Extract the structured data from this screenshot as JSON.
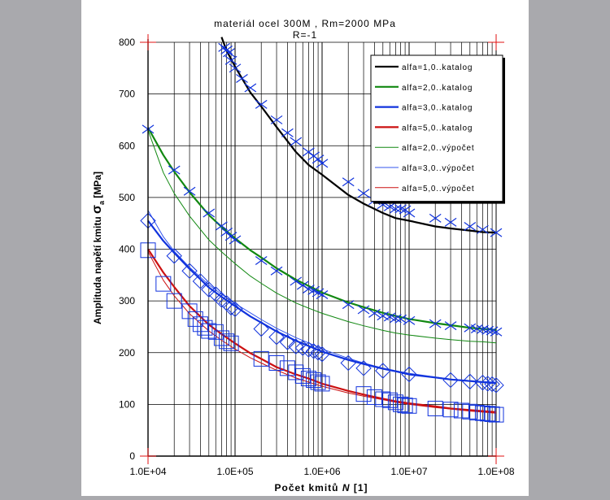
{
  "chart_data": {
    "type": "line",
    "title": "materiál ocel 300M , Rm=2000 MPa",
    "subtitle": "R=-1",
    "xlabel_prefix": "Počet kmitů ",
    "xlabel_var": "N",
    "xlabel_suffix": "  [1]",
    "ylabel_prefix": "Amplituda napětí kmitu ",
    "ylabel_sym": "σ",
    "ylabel_sub": "a",
    "ylabel_suffix": " [MPa]",
    "x_scale": "log",
    "xlim": [
      10000,
      100000000
    ],
    "ylim": [
      0,
      800
    ],
    "x_ticks": [
      10000,
      100000,
      1000000,
      10000000,
      100000000
    ],
    "x_tick_labels": [
      "1.0E+04",
      "1.0E+05",
      "1.0E+06",
      "1.0E+07",
      "1.0E+08"
    ],
    "y_ticks": [
      0,
      100,
      200,
      300,
      400,
      500,
      600,
      700,
      800
    ],
    "y_tick_labels": [
      "0",
      "100",
      "200",
      "300",
      "400",
      "500",
      "600",
      "700",
      "800"
    ],
    "grid": true,
    "legend_position": "top-right",
    "series": [
      {
        "name": "alfa=1,0..katalog",
        "color": "#000000",
        "style": "solid-thick",
        "x": [
          70000,
          80000,
          100000,
          150000,
          200000,
          300000,
          500000,
          700000,
          1000000,
          2000000,
          3000000,
          5000000,
          7000000,
          10000000,
          20000000,
          30000000,
          50000000,
          70000000,
          100000000
        ],
        "y": [
          810,
          784,
          753,
          703,
          676,
          636,
          588,
          563,
          544,
          505,
          488,
          470,
          460,
          455,
          444,
          440,
          436,
          433,
          432
        ]
      },
      {
        "name": "alfa=2,0..katalog",
        "color": "#118811",
        "style": "solid-thick",
        "x": [
          10000,
          15000,
          20000,
          30000,
          50000,
          70000,
          100000,
          150000,
          200000,
          300000,
          500000,
          700000,
          1000000,
          2000000,
          3000000,
          5000000,
          7000000,
          10000000,
          20000000,
          30000000,
          50000000,
          70000000,
          100000000
        ],
        "y": [
          635,
          582,
          550,
          510,
          466,
          443,
          421,
          398,
          384,
          363,
          341,
          329,
          316,
          297,
          288,
          277,
          271,
          265,
          257,
          253,
          248,
          246,
          244
        ]
      },
      {
        "name": "alfa=3,0..katalog",
        "color": "#1133dd",
        "style": "solid-thick",
        "x": [
          10000,
          15000,
          20000,
          30000,
          50000,
          70000,
          100000,
          150000,
          200000,
          300000,
          500000,
          700000,
          1000000,
          2000000,
          3000000,
          5000000,
          7000000,
          10000000,
          20000000,
          30000000,
          50000000,
          70000000,
          100000000
        ],
        "y": [
          455,
          416,
          393,
          362,
          326,
          308,
          290,
          270,
          258,
          241,
          223,
          213,
          202,
          186,
          178,
          169,
          164,
          158,
          152,
          148,
          145,
          143,
          141
        ]
      },
      {
        "name": "alfa=5,0..katalog",
        "color": "#cc1111",
        "style": "solid-thick",
        "x": [
          10000,
          15000,
          20000,
          30000,
          50000,
          70000,
          100000,
          150000,
          200000,
          300000,
          500000,
          700000,
          1000000,
          2000000,
          3000000,
          5000000,
          7000000,
          10000000,
          20000000,
          30000000,
          50000000,
          70000000,
          100000000
        ],
        "y": [
          400,
          355,
          327,
          290,
          254,
          236,
          218,
          199,
          188,
          172,
          158,
          150,
          140,
          126,
          119,
          111,
          106,
          102,
          96,
          92,
          89,
          87,
          85
        ]
      },
      {
        "name": "alfa=2,0..výpočet",
        "color": "#118811",
        "style": "thin",
        "x": [
          10000,
          15000,
          20000,
          30000,
          50000,
          70000,
          100000,
          150000,
          200000,
          300000,
          500000,
          700000,
          1000000,
          2000000,
          3000000,
          5000000,
          7000000,
          10000000,
          20000000,
          30000000,
          50000000,
          70000000,
          100000000
        ],
        "y": [
          630,
          548,
          508,
          464,
          418,
          395,
          372,
          348,
          334,
          315,
          296,
          286,
          276,
          260,
          252,
          243,
          238,
          234,
          228,
          225,
          222,
          221,
          219
        ]
      },
      {
        "name": "alfa=3,0..výpočet",
        "color": "#3355ee",
        "style": "thin",
        "x": [
          10000,
          15000,
          20000,
          30000,
          50000,
          70000,
          100000,
          150000,
          200000,
          300000,
          500000,
          700000,
          1000000,
          2000000,
          3000000,
          5000000,
          7000000,
          10000000,
          20000000,
          30000000,
          50000000,
          70000000,
          100000000
        ],
        "y": [
          475,
          424,
          396,
          365,
          331,
          313,
          295,
          277,
          264,
          247,
          229,
          219,
          207,
          189,
          180,
          170,
          165,
          160,
          153,
          149,
          146,
          144,
          143
        ]
      },
      {
        "name": "alfa=5,0..výpočet",
        "color": "#cc1111",
        "style": "thin",
        "x": [
          10000,
          15000,
          20000,
          30000,
          50000,
          70000,
          100000,
          150000,
          200000,
          300000,
          500000,
          700000,
          1000000,
          2000000,
          3000000,
          5000000,
          7000000,
          10000000,
          20000000,
          30000000,
          50000000,
          70000000,
          100000000
        ],
        "y": [
          395,
          340,
          310,
          275,
          242,
          224,
          207,
          190,
          180,
          166,
          151,
          143,
          135,
          122,
          116,
          109,
          104,
          100,
          94,
          91,
          87,
          85,
          83
        ]
      }
    ],
    "markers": [
      {
        "shape": "x",
        "color": "#1133dd",
        "series": "alfa=1,0",
        "x": [
          75000,
          80000,
          85000,
          90000,
          100000,
          120000,
          150000,
          200000,
          300000,
          400000,
          500000,
          700000,
          800000,
          900000,
          1000000,
          2000000,
          3000000,
          4000000,
          5000000,
          6000000,
          7000000,
          8000000,
          9000000,
          10000000,
          20000000,
          30000000,
          50000000,
          70000000,
          100000000
        ],
        "y": [
          790,
          785,
          780,
          765,
          750,
          730,
          712,
          680,
          650,
          625,
          608,
          588,
          580,
          574,
          566,
          530,
          508,
          494,
          486,
          482,
          478,
          478,
          476,
          470,
          460,
          452,
          444,
          438,
          432
        ]
      },
      {
        "shape": "x",
        "color": "#1133dd",
        "series": "alfa=2,0",
        "x": [
          10000,
          20000,
          30000,
          50000,
          70000,
          80000,
          90000,
          100000,
          200000,
          300000,
          500000,
          600000,
          700000,
          800000,
          900000,
          1000000,
          2000000,
          3000000,
          4000000,
          5000000,
          6000000,
          7000000,
          8000000,
          10000000,
          20000000,
          30000000,
          50000000,
          60000000,
          70000000,
          80000000,
          90000000,
          100000000
        ],
        "y": [
          632,
          553,
          512,
          470,
          445,
          433,
          425,
          418,
          378,
          358,
          338,
          330,
          323,
          320,
          316,
          312,
          293,
          283,
          276,
          271,
          269,
          266,
          265,
          262,
          256,
          252,
          248,
          246,
          245,
          243,
          242,
          240
        ]
      },
      {
        "shape": "diamond",
        "color": "#1133dd",
        "series": "alfa=3,0",
        "x": [
          10000,
          20000,
          30000,
          40000,
          50000,
          60000,
          70000,
          80000,
          90000,
          100000,
          200000,
          300000,
          400000,
          500000,
          600000,
          700000,
          800000,
          900000,
          1000000,
          2000000,
          3000000,
          5000000,
          10000000,
          30000000,
          50000000,
          70000000,
          80000000,
          90000000,
          100000000
        ],
        "y": [
          455,
          387,
          358,
          338,
          322,
          313,
          302,
          296,
          287,
          284,
          246,
          230,
          220,
          212,
          209,
          206,
          203,
          200,
          197,
          180,
          170,
          165,
          158,
          147,
          144,
          142,
          140,
          139,
          137
        ]
      },
      {
        "shape": "square",
        "color": "#1133dd",
        "series": "alfa=5,0",
        "x": [
          10000,
          15000,
          20000,
          30000,
          35000,
          40000,
          45000,
          50000,
          60000,
          70000,
          80000,
          90000,
          200000,
          300000,
          400000,
          500000,
          600000,
          700000,
          800000,
          900000,
          1000000,
          3000000,
          4000000,
          5000000,
          6000000,
          7000000,
          8000000,
          9000000,
          10000000,
          20000000,
          30000000,
          40000000,
          50000000,
          60000000,
          70000000,
          80000000,
          90000000,
          100000000
        ],
        "y": [
          398,
          333,
          300,
          280,
          265,
          255,
          248,
          242,
          240,
          228,
          222,
          218,
          188,
          180,
          170,
          162,
          155,
          150,
          147,
          143,
          140,
          120,
          114,
          110,
          108,
          104,
          100,
          98,
          97,
          92,
          90,
          88,
          86,
          84,
          83,
          82,
          81,
          80
        ]
      }
    ],
    "red_cross_marks": [
      {
        "x": 10000,
        "y": 800
      },
      {
        "x": 100000000,
        "y": 800
      },
      {
        "x": 10000,
        "y": 0
      },
      {
        "x": 100000000,
        "y": 0
      }
    ]
  }
}
